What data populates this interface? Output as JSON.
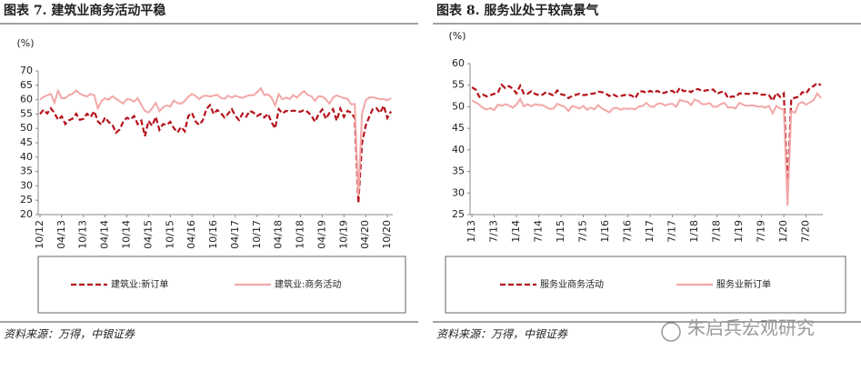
{
  "chart_data": [
    {
      "type": "line",
      "title": "图表 7. 建筑业商务活动平稳",
      "ylabel": "(%)",
      "source": "资料来源：万得，中银证券",
      "ylim": [
        20,
        70
      ],
      "yticks": [
        20,
        25,
        30,
        35,
        40,
        45,
        50,
        55,
        60,
        65,
        70
      ],
      "categories": [
        "10/12",
        null,
        null,
        null,
        null,
        null,
        "04/13",
        null,
        null,
        null,
        null,
        null,
        "10/13",
        null,
        null,
        null,
        null,
        null,
        "04/14",
        null,
        null,
        null,
        null,
        null,
        "10/14",
        null,
        null,
        null,
        null,
        null,
        "04/15",
        null,
        null,
        null,
        null,
        null,
        "10/15",
        null,
        null,
        null,
        null,
        null,
        "04/16",
        null,
        null,
        null,
        null,
        null,
        "10/16",
        null,
        null,
        null,
        null,
        null,
        "04/17",
        null,
        null,
        null,
        null,
        null,
        "10/17",
        null,
        null,
        null,
        null,
        null,
        "04/18",
        null,
        null,
        null,
        null,
        null,
        "10/18",
        null,
        null,
        null,
        null,
        null,
        "04/19",
        null,
        null,
        null,
        null,
        null,
        "10/19",
        null,
        null,
        null,
        null,
        null,
        "04/20",
        null,
        null,
        null,
        null,
        null,
        "10/20",
        null
      ],
      "series": [
        {
          "name": "建筑业:新订单",
          "color": "#b5121b",
          "line_style": "dashed",
          "values": [
            55.0,
            56.5,
            55.2,
            57.0,
            55.3,
            53.0,
            54.2,
            51.5,
            52.8,
            53.4,
            55.1,
            53.0,
            53.3,
            55.1,
            54.0,
            56.0,
            52.4,
            51.3,
            53.8,
            52.2,
            51.3,
            48.5,
            49.6,
            52.3,
            53.7,
            53.1,
            54.3,
            51.5,
            52.7,
            47.3,
            52.6,
            50.9,
            54.0,
            49.5,
            51.5,
            51.2,
            52.3,
            50.1,
            48.6,
            50.5,
            49.0,
            54.3,
            55.4,
            52.4,
            51.2,
            52.8,
            56.8,
            58.1,
            55.0,
            56.4,
            55.3,
            53.8,
            55.1,
            56.7,
            54.4,
            52.9,
            55.2,
            54.1,
            56.1,
            55.5,
            54.3,
            55.0,
            53.8,
            55.1,
            52.1,
            50.0,
            56.7,
            55.2,
            56.1,
            55.9,
            56.2,
            56.0,
            55.8,
            56.4,
            55.7,
            54.5,
            52.3,
            54.9,
            56.6,
            53.3,
            55.4,
            56.7,
            52.7,
            56.9,
            54.0,
            56.1,
            55.5,
            53.6,
            24.0,
            44.8,
            50.9,
            54.0,
            56.8,
            57.0,
            55.4,
            57.9,
            53.6,
            55.9
          ]
        },
        {
          "name": "建筑业:商务活动",
          "color": "#f2a7a7",
          "line_style": "solid",
          "values": [
            60.0,
            61.0,
            61.5,
            62.0,
            59.0,
            63.1,
            60.5,
            60.5,
            61.6,
            62.0,
            63.2,
            62.1,
            61.5,
            61.1,
            62.0,
            61.5,
            57.0,
            59.5,
            60.5,
            60.0,
            61.2,
            60.3,
            59.5,
            58.6,
            60.2,
            60.0,
            59.3,
            60.5,
            58.2,
            56.0,
            55.5,
            57.0,
            58.9,
            56.0,
            57.3,
            58.0,
            57.6,
            59.7,
            58.8,
            58.6,
            59.6,
            61.0,
            62.0,
            61.3,
            60.2,
            61.2,
            61.4,
            61.1,
            61.4,
            61.7,
            60.6,
            60.3,
            61.4,
            60.7,
            61.4,
            60.9,
            60.6,
            61.2,
            61.6,
            61.5,
            62.6,
            64.0,
            61.6,
            61.9,
            60.7,
            58.0,
            61.9,
            60.1,
            60.7,
            60.2,
            61.6,
            60.7,
            62.0,
            63.0,
            61.6,
            61.2,
            59.6,
            61.2,
            61.1,
            60.1,
            58.6,
            60.8,
            61.5,
            61.0,
            60.5,
            60.3,
            58.4,
            58.5,
            26.6,
            55.1,
            59.7,
            60.8,
            60.8,
            60.5,
            60.2,
            60.2,
            59.8,
            60.5
          ]
        }
      ]
    },
    {
      "type": "line",
      "title": "图表 8. 服务业处于较高景气",
      "ylabel": "(%)",
      "source": "资料来源：万得，中银证券",
      "ylim": [
        25,
        60
      ],
      "yticks": [
        25,
        30,
        35,
        40,
        45,
        50,
        55,
        60
      ],
      "categories": [
        "1/13",
        null,
        null,
        null,
        null,
        null,
        "7/13",
        null,
        null,
        null,
        null,
        null,
        "1/14",
        null,
        null,
        null,
        null,
        null,
        "7/14",
        null,
        null,
        null,
        null,
        null,
        "1/15",
        null,
        null,
        null,
        null,
        null,
        "7/15",
        null,
        null,
        null,
        null,
        null,
        "1/16",
        null,
        null,
        null,
        null,
        null,
        "7/16",
        null,
        null,
        null,
        null,
        null,
        "1/17",
        null,
        null,
        null,
        null,
        null,
        "7/17",
        null,
        null,
        null,
        null,
        null,
        "1/18",
        null,
        null,
        null,
        null,
        null,
        "7/18",
        null,
        null,
        null,
        null,
        null,
        "1/19",
        null,
        null,
        null,
        null,
        null,
        "7/19",
        null,
        null,
        null,
        null,
        null,
        "1/20",
        null,
        null,
        null,
        null,
        null,
        "7/20",
        null,
        null,
        null,
        null
      ],
      "series": [
        {
          "name": "服务业商务活动",
          "color": "#b5121b",
          "line_style": "dashed",
          "values": [
            54.5,
            54.0,
            52.3,
            52.8,
            52.4,
            52.7,
            53.0,
            53.3,
            55.1,
            54.3,
            54.8,
            54.2,
            53.1,
            54.9,
            53.0,
            53.0,
            53.6,
            53.0,
            52.7,
            52.8,
            53.4,
            53.0,
            52.6,
            53.8,
            52.9,
            52.7,
            52.0,
            52.5,
            52.8,
            53.0,
            52.7,
            52.8,
            53.0,
            53.1,
            53.5,
            53.4,
            53.1,
            52.5,
            52.9,
            52.4,
            52.5,
            52.7,
            52.8,
            52.6,
            52.0,
            53.5,
            53.6,
            53.2,
            53.7,
            53.3,
            53.7,
            53.1,
            53.3,
            53.6,
            53.7,
            53.0,
            54.4,
            53.6,
            53.8,
            53.4,
            54.0,
            54.1,
            53.6,
            53.8,
            53.9,
            54.0,
            53.0,
            53.4,
            53.5,
            52.0,
            52.4,
            52.3,
            53.1,
            53.1,
            53.0,
            53.0,
            53.2,
            53.1,
            52.8,
            52.8,
            52.7,
            51.4,
            53.2,
            52.3,
            53.1,
            30.1,
            51.8,
            52.1,
            52.3,
            53.4,
            53.1,
            54.3,
            54.8,
            55.5,
            55.0
          ]
        },
        {
          "name": "服务业新订单",
          "color": "#f2a7a7",
          "line_style": "solid",
          "values": [
            51.5,
            51.0,
            50.5,
            49.7,
            49.4,
            49.7,
            49.2,
            50.5,
            50.2,
            50.6,
            50.3,
            49.8,
            50.5,
            51.8,
            50.1,
            50.6,
            50.1,
            50.6,
            50.4,
            50.4,
            49.9,
            49.5,
            49.6,
            50.7,
            50.3,
            50.0,
            49.0,
            50.2,
            49.9,
            49.6,
            50.2,
            49.3,
            49.8,
            49.4,
            50.4,
            49.6,
            49.2,
            48.7,
            49.6,
            49.8,
            49.3,
            49.6,
            49.5,
            49.6,
            49.4,
            50.1,
            50.2,
            50.9,
            50.1,
            50.0,
            50.7,
            50.8,
            50.3,
            50.6,
            50.7,
            50.0,
            51.6,
            51.3,
            51.2,
            50.4,
            51.7,
            51.3,
            50.6,
            50.6,
            50.9,
            50.0,
            50.0,
            50.6,
            50.9,
            49.8,
            49.9,
            49.6,
            50.9,
            50.5,
            50.2,
            50.3,
            50.3,
            50.0,
            50.1,
            49.8,
            50.2,
            48.5,
            50.2,
            49.6,
            49.3,
            27.1,
            49.0,
            48.6,
            50.7,
            51.1,
            50.5,
            51.0,
            51.5,
            53.1,
            52.0
          ]
        }
      ]
    }
  ],
  "watermark": "朱启兵宏观研究"
}
